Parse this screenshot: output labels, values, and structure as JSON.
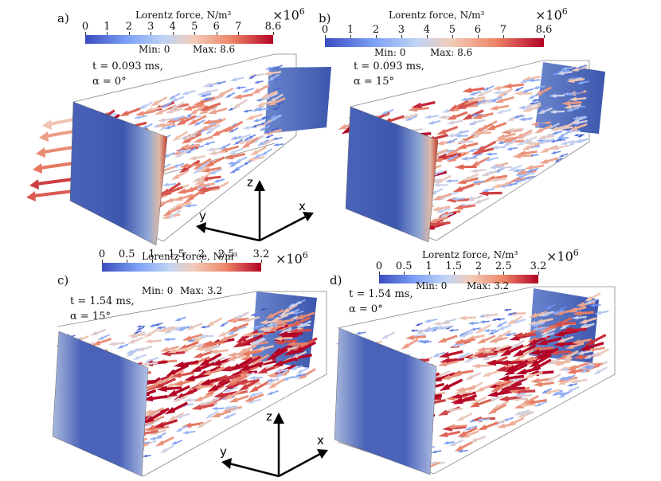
{
  "colorbar_title": "Lorentz force, N/m³",
  "multiplier_base": "×10",
  "multiplier_exp": "6",
  "min_label": "Min:",
  "max_label": "Max:",
  "axes": {
    "x": "x",
    "y": "y",
    "z": "z"
  },
  "colors": {
    "low": "#3a4cc0",
    "mid": "#dddddd",
    "high": "#b40426"
  },
  "panels": [
    {
      "label": "a)",
      "time": "t = 0.093 ms,",
      "alpha": "α = 0°",
      "min": "0",
      "max": "8.6",
      "ticks": [
        "0",
        "1",
        "2",
        "3",
        "4",
        "5",
        "6",
        "7",
        "8.6"
      ]
    },
    {
      "label": "b)",
      "time": "t = 0.093 ms,",
      "alpha": "α = 15°",
      "min": "0",
      "max": "8.6",
      "ticks": [
        "0",
        "1",
        "2",
        "3",
        "4",
        "5",
        "6",
        "7",
        "8.6"
      ]
    },
    {
      "label": "c)",
      "time": "t = 1.54 ms,",
      "alpha": "α = 15°",
      "min": "0",
      "max": "3.2",
      "ticks": [
        "0",
        "0.5",
        "1",
        "1.5",
        "2",
        "2.5",
        "3.2"
      ]
    },
    {
      "label": "d)",
      "time": "t = 1.54 ms,",
      "alpha": "α = 0°",
      "min": "0",
      "max": "3.2",
      "ticks": [
        "0",
        "0.5",
        "1",
        "1.5",
        "2",
        "2.5",
        "3.2"
      ]
    }
  ]
}
